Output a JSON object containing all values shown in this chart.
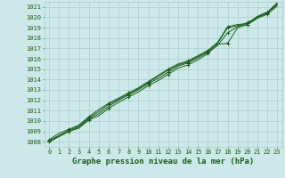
{
  "title": "Graphe pression niveau de la mer (hPa)",
  "background_color": "#cce8e8",
  "grid_color": "#aacccc",
  "line_color": "#1a5c1a",
  "marker_color": "#1a5c1a",
  "xlim": [
    -0.5,
    23.5
  ],
  "ylim": [
    1007.5,
    1021.5
  ],
  "xticks": [
    0,
    1,
    2,
    3,
    4,
    5,
    6,
    7,
    8,
    9,
    10,
    11,
    12,
    13,
    14,
    15,
    16,
    17,
    18,
    19,
    20,
    21,
    22,
    23
  ],
  "yticks": [
    1008,
    1009,
    1010,
    1011,
    1012,
    1013,
    1014,
    1015,
    1016,
    1017,
    1018,
    1019,
    1020,
    1021
  ],
  "series": [
    [
      1008.0,
      1008.5,
      1009.0,
      1009.3,
      1010.1,
      1010.5,
      1011.2,
      1011.8,
      1012.3,
      1012.8,
      1013.4,
      1013.9,
      1014.5,
      1015.1,
      1015.4,
      1015.9,
      1016.5,
      1017.4,
      1017.5,
      1019.0,
      1019.3,
      1020.0,
      1020.4,
      1021.3
    ],
    [
      1008.0,
      1008.5,
      1009.0,
      1009.4,
      1010.2,
      1010.7,
      1011.4,
      1012.0,
      1012.5,
      1013.0,
      1013.6,
      1014.1,
      1014.7,
      1015.3,
      1015.6,
      1016.1,
      1016.6,
      1017.3,
      1018.5,
      1019.1,
      1019.5,
      1020.0,
      1020.5,
      1021.2
    ],
    [
      1008.1,
      1008.6,
      1009.1,
      1009.5,
      1010.3,
      1010.9,
      1011.6,
      1012.1,
      1012.6,
      1013.1,
      1013.7,
      1014.3,
      1014.9,
      1015.4,
      1015.7,
      1016.2,
      1016.7,
      1017.5,
      1019.0,
      1019.2,
      1019.3,
      1019.9,
      1020.3,
      1021.1
    ],
    [
      1008.2,
      1008.8,
      1009.2,
      1009.6,
      1010.4,
      1011.1,
      1011.7,
      1012.2,
      1012.7,
      1013.2,
      1013.8,
      1014.4,
      1015.0,
      1015.5,
      1015.8,
      1016.3,
      1016.8,
      1017.6,
      1019.1,
      1019.3,
      1019.4,
      1020.1,
      1020.5,
      1021.4
    ]
  ],
  "title_color": "#1a5c1a",
  "tick_label_fontsize": 5,
  "title_fontsize": 6.5,
  "tick_color": "#1a5c1a",
  "marker": "+",
  "marker_size": 3.5,
  "linewidth": 0.7
}
